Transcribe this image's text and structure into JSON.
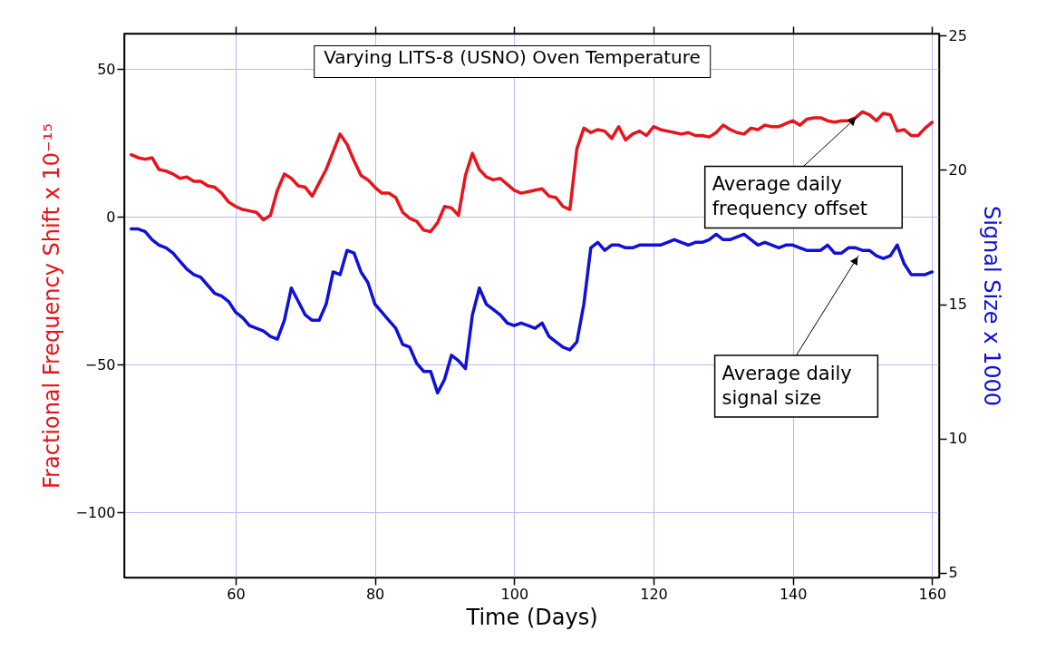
{
  "chart_data": {
    "type": "line",
    "title": "Varying LITS-8 (USNO) Oven Temperature",
    "xlabel": "Time (Days)",
    "ylabel": "Fractional Frequency Shift x 10⁻¹⁵",
    "y2label": "Signal Size x 1000",
    "x": [
      45,
      46,
      47,
      48,
      49,
      50,
      51,
      52,
      53,
      54,
      55,
      56,
      57,
      58,
      59,
      60,
      61,
      62,
      63,
      64,
      65,
      66,
      67,
      68,
      69,
      70,
      71,
      72,
      73,
      74,
      75,
      76,
      77,
      78,
      79,
      80,
      81,
      82,
      83,
      84,
      85,
      86,
      87,
      88,
      89,
      90,
      91,
      92,
      93,
      94,
      95,
      96,
      97,
      98,
      99,
      100,
      101,
      102,
      103,
      104,
      105,
      106,
      107,
      108,
      109,
      110,
      111,
      112,
      113,
      114,
      115,
      116,
      117,
      118,
      119,
      120,
      121,
      122,
      123,
      124,
      125,
      126,
      127,
      128,
      129,
      130,
      131,
      132,
      133,
      134,
      135,
      136,
      137,
      138,
      139,
      140,
      141,
      142,
      143,
      144,
      145,
      146,
      147,
      148,
      149,
      150,
      151,
      152,
      153,
      154,
      155,
      156,
      157,
      158,
      159,
      160
    ],
    "series": [
      {
        "color": "#e8141b",
        "values": [
          21,
          20,
          19.5,
          20,
          16,
          15.5,
          14.5,
          13,
          13.5,
          12,
          12,
          10.5,
          10,
          8,
          5,
          3.5,
          2.5,
          2,
          1.5,
          -1,
          0.5,
          9,
          14.5,
          13,
          10.5,
          10,
          7,
          11.5,
          16,
          22,
          28,
          24.5,
          19,
          14,
          12.5,
          10,
          8,
          8,
          6.5,
          1.5,
          -0.5,
          -1.5,
          -4.5,
          -5,
          -2,
          3.5,
          3,
          0.5,
          14,
          21.5,
          16,
          13.5,
          12.5,
          13,
          11,
          9,
          8,
          8.5,
          9,
          9.5,
          7,
          6.5,
          3.5,
          2.5,
          23,
          30,
          28.5,
          29.5,
          29,
          26.5,
          30.5,
          26,
          28,
          29,
          27.5,
          30.5,
          29.5,
          29,
          28.5,
          28,
          28.5,
          27.5,
          27.5,
          27,
          28.5,
          31,
          29.5,
          28.5,
          28,
          30,
          29.5,
          31,
          30.5,
          30.5,
          31.5,
          32.5,
          31,
          33,
          33.5,
          33.5,
          32.5,
          32,
          32.5,
          32.5,
          33.5,
          35.5,
          34.5,
          32.5,
          35,
          34.5,
          29,
          29.5,
          27.5,
          27.5,
          30,
          32
        ]
      },
      {
        "color": "#1010d8",
        "axis": "y2",
        "values": [
          17.8,
          17.8,
          17.7,
          17.4,
          17.2,
          17.1,
          16.9,
          16.6,
          16.3,
          16.1,
          16,
          15.7,
          15.4,
          15.3,
          15.1,
          14.7,
          14.5,
          14.2,
          14.1,
          14,
          13.8,
          13.7,
          14.4,
          15.6,
          15.1,
          14.6,
          14.4,
          14.4,
          15,
          16.2,
          16.1,
          17,
          16.9,
          16.2,
          15.8,
          15,
          14.7,
          14.4,
          14.1,
          13.5,
          13.4,
          12.8,
          12.5,
          12.5,
          11.7,
          12.2,
          13.1,
          12.9,
          12.6,
          14.6,
          15.6,
          15,
          14.8,
          14.6,
          14.3,
          14.2,
          14.3,
          14.2,
          14.1,
          14.3,
          13.8,
          13.6,
          13.4,
          13.3,
          13.6,
          15,
          17.1,
          17.3,
          17,
          17.2,
          17.2,
          17.1,
          17.1,
          17.2,
          17.2,
          17.2,
          17.2,
          17.3,
          17.4,
          17.3,
          17.2,
          17.3,
          17.3,
          17.4,
          17.6,
          17.4,
          17.4,
          17.5,
          17.6,
          17.4,
          17.2,
          17.3,
          17.2,
          17.1,
          17.2,
          17.2,
          17.1,
          17,
          17,
          17,
          17.2,
          16.9,
          16.9,
          17.1,
          17.1,
          17,
          17,
          16.8,
          16.7,
          16.8,
          17.2,
          16.5,
          16.1,
          16.1,
          16.1,
          16.2
        ]
      }
    ],
    "xlim": [
      44,
      161
    ],
    "xticks": [
      60,
      80,
      100,
      120,
      140,
      160
    ],
    "ylim": [
      -122,
      62
    ],
    "yticks": [
      -100,
      -50,
      0,
      50
    ],
    "y2lim": [
      4.83,
      25.07
    ],
    "y2ticks": [
      5,
      10,
      15,
      20,
      25
    ],
    "grid": true,
    "annotations": [
      {
        "text": "Average daily frequency offset",
        "x": 150,
        "y": 35.5
      },
      {
        "text": "Average daily signal size",
        "x": 150,
        "y": -11
      }
    ]
  }
}
